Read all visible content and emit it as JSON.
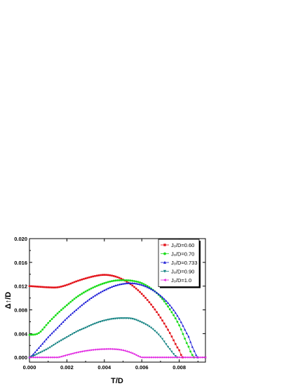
{
  "chart_data": {
    "type": "line",
    "title": "",
    "xlabel": "T/D",
    "ylabel": "Δ↑/D",
    "xlim": [
      0.0,
      0.0094
    ],
    "ylim": [
      -0.0008,
      0.02
    ],
    "xticks": [
      "0.000",
      "0.002",
      "0.004",
      "0.006",
      "0.008"
    ],
    "yticks": [
      "0.000",
      "0.004",
      "0.008",
      "0.012",
      "0.016",
      "0.020"
    ],
    "legend_position": "top-right",
    "grid": false,
    "series": [
      {
        "name": "J₀/D=0.60",
        "color": "#e3141b",
        "marker": "square",
        "x": [
          0.0,
          0.0005,
          0.001,
          0.0015,
          0.002,
          0.0025,
          0.003,
          0.0035,
          0.004,
          0.0045,
          0.005,
          0.0055,
          0.006,
          0.0065,
          0.007,
          0.0075,
          0.008,
          0.0082
        ],
        "y": [
          0.012,
          0.0119,
          0.0118,
          0.0118,
          0.0122,
          0.0128,
          0.0133,
          0.0137,
          0.0139,
          0.0137,
          0.0131,
          0.0121,
          0.0107,
          0.0089,
          0.0067,
          0.0041,
          0.0012,
          0.0
        ]
      },
      {
        "name": "J₀/D=0.70",
        "color": "#1bdc1b",
        "marker": "circle",
        "x": [
          0.0,
          0.0005,
          0.001,
          0.0015,
          0.002,
          0.0025,
          0.003,
          0.0035,
          0.004,
          0.0045,
          0.005,
          0.0055,
          0.006,
          0.0065,
          0.007,
          0.0075,
          0.008,
          0.0085,
          0.0088
        ],
        "y": [
          0.0038,
          0.0041,
          0.0058,
          0.0074,
          0.0088,
          0.0101,
          0.0111,
          0.0119,
          0.0125,
          0.0129,
          0.013,
          0.0129,
          0.0125,
          0.0116,
          0.0102,
          0.0081,
          0.0054,
          0.0018,
          0.0
        ]
      },
      {
        "name": "J₀/D=0.733",
        "color": "#1a1ad6",
        "marker": "triangle-up",
        "x": [
          0.0,
          0.0005,
          0.001,
          0.0015,
          0.002,
          0.0025,
          0.003,
          0.0035,
          0.004,
          0.0045,
          0.005,
          0.0055,
          0.006,
          0.0065,
          0.007,
          0.0075,
          0.008,
          0.0085,
          0.0088,
          0.009
        ],
        "y": [
          0.0,
          0.0016,
          0.0034,
          0.005,
          0.0066,
          0.008,
          0.0093,
          0.0104,
          0.0113,
          0.012,
          0.0124,
          0.0125,
          0.0122,
          0.0115,
          0.0104,
          0.0088,
          0.0065,
          0.0035,
          0.0011,
          0.0
        ]
      },
      {
        "name": "J₀/D=0.90",
        "color": "#108080",
        "marker": "triangle-down",
        "x": [
          0.0,
          0.0005,
          0.001,
          0.0015,
          0.002,
          0.0025,
          0.003,
          0.0035,
          0.004,
          0.0045,
          0.005,
          0.0055,
          0.006,
          0.0065,
          0.007,
          0.0075,
          0.0079
        ],
        "y": [
          0.0,
          0.0007,
          0.0015,
          0.0025,
          0.0034,
          0.0043,
          0.005,
          0.0057,
          0.0062,
          0.0065,
          0.0066,
          0.0065,
          0.0059,
          0.005,
          0.0035,
          0.0014,
          0.0
        ]
      },
      {
        "name": "J₀/D=1.0",
        "color": "#e020e0",
        "marker": "triangle-left",
        "x": [
          0.0,
          0.001,
          0.0015,
          0.002,
          0.0025,
          0.003,
          0.0035,
          0.004,
          0.0045,
          0.005,
          0.0055,
          0.006,
          0.0065,
          0.0094
        ],
        "y": [
          0.0,
          0.0,
          0.0,
          0.0004,
          0.0008,
          0.0011,
          0.0013,
          0.0014,
          0.0014,
          0.0012,
          0.0007,
          0.0,
          0.0,
          0.0
        ]
      }
    ]
  }
}
